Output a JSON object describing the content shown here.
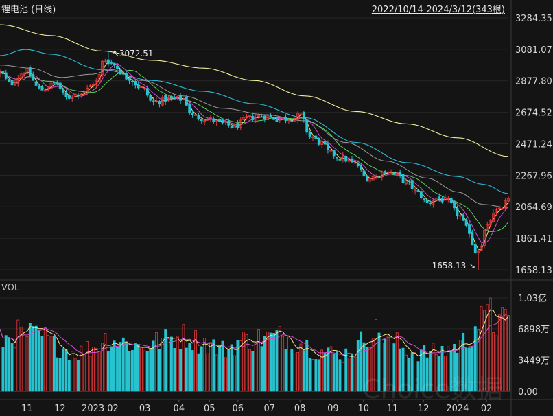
{
  "header": {
    "title": "锂电池 (日线)",
    "range": "2022/10/14-2024/3/12(343根)"
  },
  "volume_label": "VOL",
  "watermark": "Choice数据",
  "colors": {
    "up": "#e8393b",
    "down": "#27c3d0",
    "ma_white": "#e0e0e0",
    "ma_yellow": "#f0e68c",
    "ma_purple": "#d24dd2",
    "ma_green": "#5fcf5f",
    "ma_gray": "#9a9a9a",
    "ma_cyan": "#2bb8d6",
    "ma_longyellow": "#f2ee9a"
  },
  "chart_data": {
    "type": "candlestick",
    "price_axis": {
      "ticks": [
        3284.35,
        3081.07,
        2877.8,
        2674.52,
        2471.24,
        2267.96,
        2064.69,
        1861.41,
        1658.13
      ],
      "tick_labels": [
        "3284.35",
        "3081.07",
        "2877.80",
        "2674.52",
        "2471.24",
        "2267.96",
        "2064.69",
        "1861.41",
        "1658.13"
      ]
    },
    "volume_axis": {
      "ticks": [
        0,
        3449,
        6898,
        10300
      ],
      "tick_labels": [
        "0.00",
        "3449万",
        "6898万",
        "1.03亿"
      ]
    },
    "x_ticks": [
      {
        "label": "11",
        "frac": 0.053
      },
      {
        "label": "12",
        "frac": 0.118
      },
      {
        "label": "2023",
        "frac": 0.183
      },
      {
        "label": "02",
        "frac": 0.222
      },
      {
        "label": "03",
        "frac": 0.285
      },
      {
        "label": "04",
        "frac": 0.352
      },
      {
        "label": "05",
        "frac": 0.412
      },
      {
        "label": "06",
        "frac": 0.468
      },
      {
        "label": "07",
        "frac": 0.53
      },
      {
        "label": "08",
        "frac": 0.59
      },
      {
        "label": "09",
        "frac": 0.655
      },
      {
        "label": "10",
        "frac": 0.715
      },
      {
        "label": "11",
        "frac": 0.772
      },
      {
        "label": "12",
        "frac": 0.833
      },
      {
        "label": "2024",
        "frac": 0.9
      },
      {
        "label": "02",
        "frac": 0.957
      }
    ],
    "annotations": [
      {
        "label": "3072.51",
        "value": 3072.51,
        "bar_frac": 0.215,
        "arrow": "↖"
      },
      {
        "label": "1658.13",
        "value": 1658.13,
        "bar_frac": 0.942,
        "arrow": "↘"
      }
    ],
    "close_anchors": [
      [
        0,
        2930
      ],
      [
        0.02,
        2860
      ],
      [
        0.05,
        2940
      ],
      [
        0.08,
        2820
      ],
      [
        0.11,
        2860
      ],
      [
        0.13,
        2770
      ],
      [
        0.16,
        2800
      ],
      [
        0.19,
        2870
      ],
      [
        0.205,
        3020
      ],
      [
        0.22,
        2990
      ],
      [
        0.25,
        2900
      ],
      [
        0.28,
        2830
      ],
      [
        0.3,
        2740
      ],
      [
        0.33,
        2760
      ],
      [
        0.36,
        2760
      ],
      [
        0.38,
        2650
      ],
      [
        0.41,
        2630
      ],
      [
        0.44,
        2600
      ],
      [
        0.46,
        2580
      ],
      [
        0.49,
        2640
      ],
      [
        0.52,
        2650
      ],
      [
        0.55,
        2630
      ],
      [
        0.58,
        2640
      ],
      [
        0.59,
        2660
      ],
      [
        0.61,
        2520
      ],
      [
        0.63,
        2480
      ],
      [
        0.65,
        2410
      ],
      [
        0.67,
        2380
      ],
      [
        0.7,
        2340
      ],
      [
        0.72,
        2250
      ],
      [
        0.74,
        2260
      ],
      [
        0.76,
        2300
      ],
      [
        0.78,
        2270
      ],
      [
        0.8,
        2220
      ],
      [
        0.82,
        2160
      ],
      [
        0.84,
        2090
      ],
      [
        0.86,
        2120
      ],
      [
        0.88,
        2100
      ],
      [
        0.9,
        2020
      ],
      [
        0.92,
        1920
      ],
      [
        0.935,
        1780
      ],
      [
        0.945,
        1810
      ],
      [
        0.955,
        1920
      ],
      [
        0.97,
        2010
      ],
      [
        0.985,
        2060
      ],
      [
        1.0,
        2110
      ]
    ],
    "ma_long_anchors": [
      [
        0,
        3240
      ],
      [
        0.1,
        3170
      ],
      [
        0.2,
        3070
      ],
      [
        0.3,
        3010
      ],
      [
        0.4,
        2960
      ],
      [
        0.5,
        2880
      ],
      [
        0.6,
        2780
      ],
      [
        0.7,
        2680
      ],
      [
        0.8,
        2600
      ],
      [
        0.9,
        2510
      ],
      [
        1.0,
        2390
      ]
    ],
    "ma_cyan_anchors": [
      [
        0,
        3040
      ],
      [
        0.05,
        3080
      ],
      [
        0.1,
        3050
      ],
      [
        0.2,
        2950
      ],
      [
        0.3,
        2880
      ],
      [
        0.4,
        2810
      ],
      [
        0.5,
        2730
      ],
      [
        0.6,
        2640
      ],
      [
        0.7,
        2480
      ],
      [
        0.8,
        2350
      ],
      [
        0.9,
        2260
      ],
      [
        0.95,
        2210
      ],
      [
        1.0,
        2150
      ]
    ],
    "ma_gray_anchors": [
      [
        0,
        2980
      ],
      [
        0.06,
        2960
      ],
      [
        0.12,
        2900
      ],
      [
        0.18,
        2920
      ],
      [
        0.22,
        2950
      ],
      [
        0.28,
        2880
      ],
      [
        0.36,
        2780
      ],
      [
        0.44,
        2700
      ],
      [
        0.52,
        2660
      ],
      [
        0.6,
        2620
      ],
      [
        0.68,
        2480
      ],
      [
        0.76,
        2360
      ],
      [
        0.84,
        2250
      ],
      [
        0.9,
        2160
      ],
      [
        0.95,
        2080
      ],
      [
        1.0,
        2060
      ]
    ],
    "volume_anchors": [
      [
        0,
        5600
      ],
      [
        0.04,
        6400
      ],
      [
        0.08,
        6000
      ],
      [
        0.12,
        4800
      ],
      [
        0.15,
        4200
      ],
      [
        0.18,
        4800
      ],
      [
        0.21,
        5800
      ],
      [
        0.24,
        5400
      ],
      [
        0.28,
        4900
      ],
      [
        0.32,
        5600
      ],
      [
        0.36,
        6100
      ],
      [
        0.4,
        5400
      ],
      [
        0.44,
        4600
      ],
      [
        0.48,
        5600
      ],
      [
        0.52,
        5900
      ],
      [
        0.56,
        6000
      ],
      [
        0.59,
        5300
      ],
      [
        0.63,
        4400
      ],
      [
        0.67,
        4000
      ],
      [
        0.7,
        4700
      ],
      [
        0.72,
        6200
      ],
      [
        0.74,
        6600
      ],
      [
        0.77,
        5600
      ],
      [
        0.8,
        4500
      ],
      [
        0.83,
        4200
      ],
      [
        0.86,
        4300
      ],
      [
        0.89,
        4800
      ],
      [
        0.92,
        5600
      ],
      [
        0.94,
        7600
      ],
      [
        0.96,
        7900
      ],
      [
        0.98,
        7400
      ],
      [
        1.0,
        7800
      ]
    ],
    "volume_spike": {
      "bar_frac": 0.962,
      "value": 10300
    }
  }
}
